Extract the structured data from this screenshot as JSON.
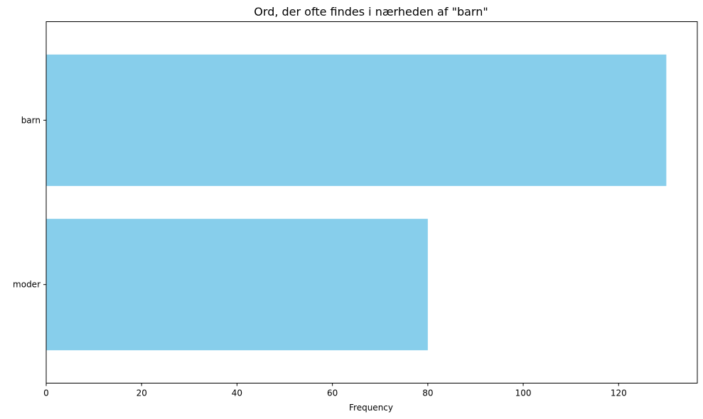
{
  "chart_data": {
    "type": "bar",
    "orientation": "horizontal",
    "title": "Ord, der ofte findes i nærheden af \"barn\"",
    "xlabel": "Frequency",
    "ylabel": "",
    "categories": [
      "barn",
      "moder"
    ],
    "values": [
      130,
      80
    ],
    "xlim": [
      0,
      136.5
    ],
    "xticks": [
      0,
      20,
      40,
      60,
      80,
      100,
      120
    ],
    "bar_color": "#87ceeb",
    "grid": false,
    "legend": "none"
  }
}
